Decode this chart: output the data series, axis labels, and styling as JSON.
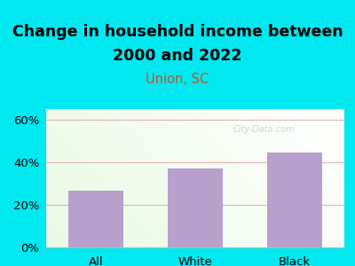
{
  "title_line1": "Change in household income between",
  "title_line2": "2000 and 2022",
  "subtitle": "Union, SC",
  "categories": [
    "All",
    "White",
    "Black"
  ],
  "values": [
    26.5,
    37.0,
    44.5
  ],
  "bar_color": "#b8a0cc",
  "background_outer": "#00e8f0",
  "background_inner": "#e8f2e0",
  "title_fontsize": 12.5,
  "subtitle_fontsize": 10.5,
  "subtitle_color": "#c05820",
  "ylabel_ticks": [
    0,
    20,
    40,
    60
  ],
  "ylim": [
    0,
    65
  ],
  "grid_color": "#e8b0b0",
  "tick_label_fontsize": 9.5,
  "watermark": "City-Data.com",
  "watermark_color": "#aabbcc"
}
